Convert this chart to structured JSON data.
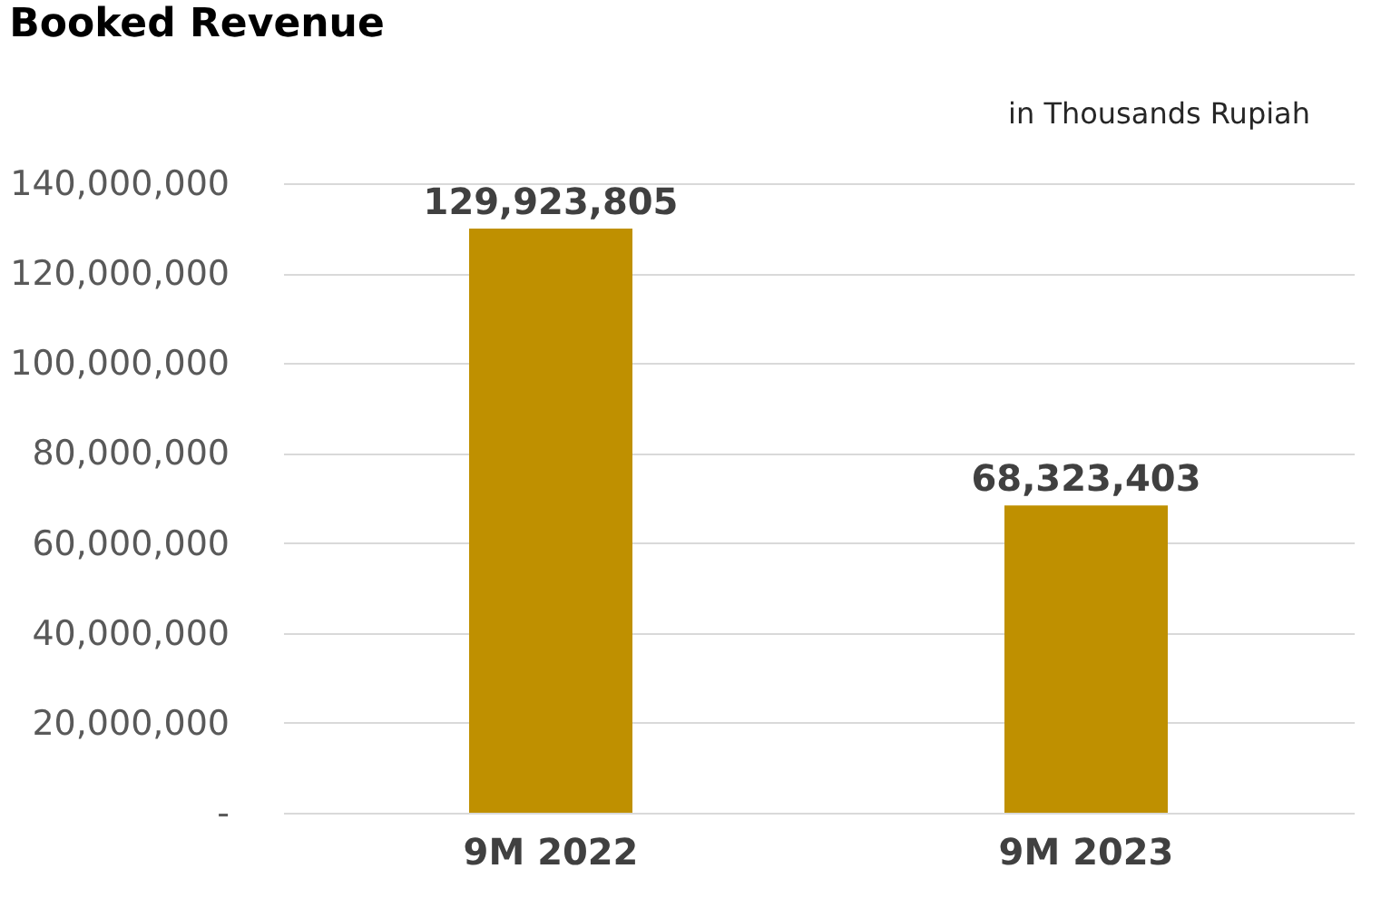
{
  "chart_data": {
    "type": "bar",
    "title": "Booked Revenue",
    "annotations": [
      "in Thousands Rupiah"
    ],
    "categories": [
      "9M 2022",
      "9M 2023"
    ],
    "values": [
      129923805,
      68323403
    ],
    "color": "#bf9000",
    "ylim": [
      0,
      140000000
    ],
    "yticks": [
      {
        "value": 0,
        "label": "-"
      },
      {
        "value": 20000000,
        "label": "20,000,000"
      },
      {
        "value": 40000000,
        "label": "40,000,000"
      },
      {
        "value": 60000000,
        "label": "60,000,000"
      },
      {
        "value": 80000000,
        "label": "80,000,000"
      },
      {
        "value": 100000000,
        "label": "100,000,000"
      },
      {
        "value": 120000000,
        "label": "120,000,000"
      },
      {
        "value": 140000000,
        "label": "140,000,000"
      }
    ],
    "grid": "y",
    "data_labels": true,
    "value_labels": [
      "129,923,805",
      "68,323,403"
    ]
  }
}
